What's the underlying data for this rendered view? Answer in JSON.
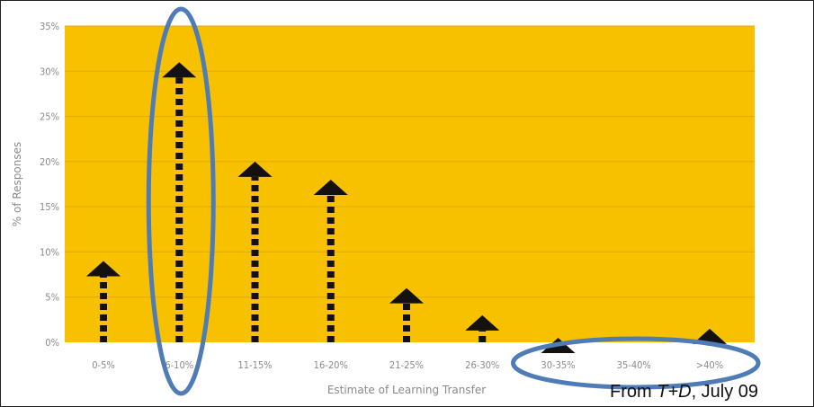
{
  "credit": {
    "prefix": "From ",
    "source": "T+D",
    "suffix": ", July 09"
  },
  "colors": {
    "plot_bg": "#F7C100",
    "grid": "#E3A800",
    "arrow": "#141210",
    "highlight": "#4F7BB7",
    "tick_text": "#8a8a8a"
  },
  "chart_data": {
    "type": "bar",
    "bar_style": "dashed-arrow",
    "categories": [
      "0-5%",
      "6-10%",
      "11-15%",
      "16-20%",
      "21-25%",
      "26-30%",
      "30-35%",
      "35-40%",
      ">40%"
    ],
    "values": [
      9,
      31,
      20,
      18,
      6,
      3,
      0.5,
      0,
      1.5
    ],
    "xlabel": "Estimate of Learning Transfer",
    "ylabel": "% of Responses",
    "ylim": [
      0,
      35
    ],
    "yticks": [
      "0%",
      "5%",
      "10%",
      "15%",
      "20%",
      "25%",
      "30%",
      "35%"
    ],
    "grid": true,
    "legend": "none",
    "highlights": [
      {
        "shape": "ellipse",
        "around": [
          "6-10%"
        ]
      },
      {
        "shape": "ellipse",
        "around": [
          "30-35%",
          "35-40%",
          ">40%"
        ]
      }
    ]
  }
}
